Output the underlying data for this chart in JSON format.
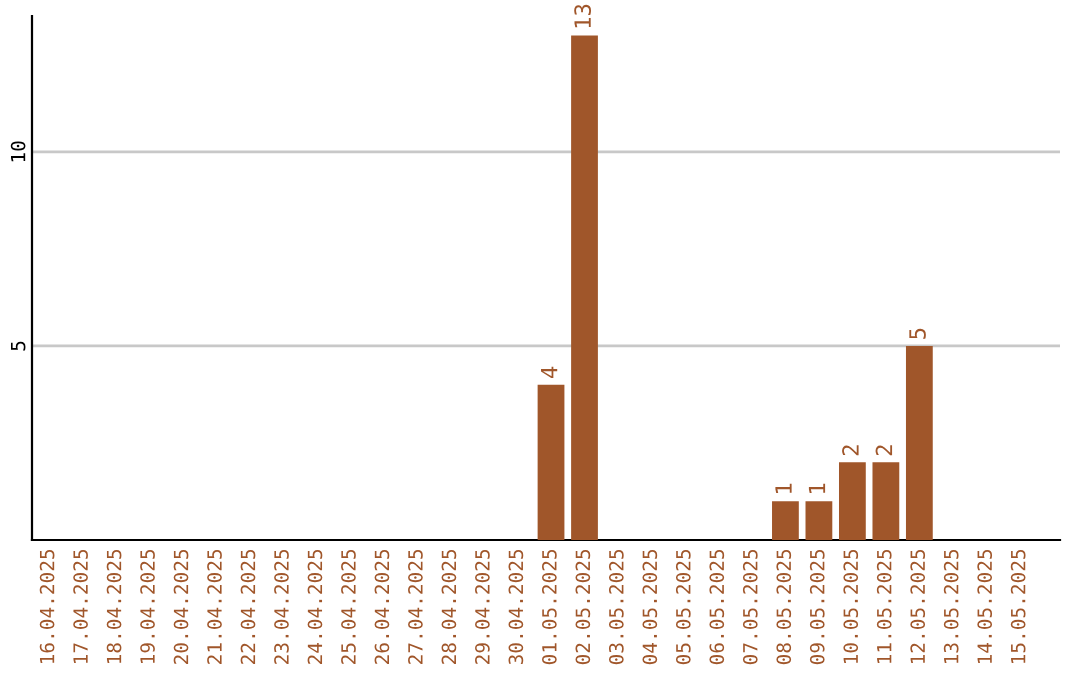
{
  "chart_data": {
    "type": "bar",
    "categories": [
      "16.04.2025",
      "17.04.2025",
      "18.04.2025",
      "19.04.2025",
      "20.04.2025",
      "21.04.2025",
      "22.04.2025",
      "23.04.2025",
      "24.04.2025",
      "25.04.2025",
      "26.04.2025",
      "27.04.2025",
      "28.04.2025",
      "29.04.2025",
      "30.04.2025",
      "01.05.2025",
      "02.05.2025",
      "03.05.2025",
      "04.05.2025",
      "05.05.2025",
      "06.05.2025",
      "07.05.2025",
      "08.05.2025",
      "09.05.2025",
      "10.05.2025",
      "11.05.2025",
      "12.05.2025",
      "13.05.2025",
      "14.05.2025",
      "15.05.2025"
    ],
    "values": [
      0,
      0,
      0,
      0,
      0,
      0,
      0,
      0,
      0,
      0,
      0,
      0,
      0,
      0,
      0,
      4,
      13,
      0,
      0,
      0,
      0,
      0,
      1,
      1,
      2,
      2,
      5,
      0,
      0,
      0
    ],
    "value_labels": [
      null,
      null,
      null,
      null,
      null,
      null,
      null,
      null,
      null,
      null,
      null,
      null,
      null,
      null,
      null,
      "4",
      "13",
      null,
      null,
      null,
      null,
      null,
      "1",
      "1",
      "2",
      "2",
      "5",
      null,
      null,
      null
    ],
    "color": "#a0562a",
    "ylim": [
      0,
      13.5
    ],
    "yticks": [
      5,
      10
    ],
    "grid": "y"
  }
}
